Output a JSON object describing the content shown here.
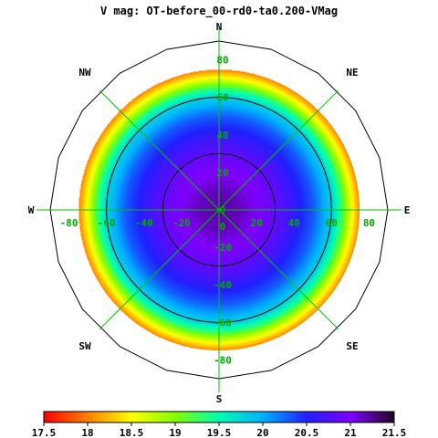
{
  "chart_data": {
    "type": "heatmap",
    "projection": "polar-sky",
    "title": "V mag: OT-before_00-rd0-ta0.200-VMag",
    "compass": {
      "n": "N",
      "ne": "NE",
      "e": "E",
      "se": "SE",
      "s": "S",
      "sw": "SW",
      "w": "W",
      "nw": "NW"
    },
    "radial_ticks": [
      {
        "key": "e20",
        "label": "20",
        "dir": "E",
        "r": 20
      },
      {
        "key": "e40",
        "label": "40",
        "dir": "E",
        "r": 40
      },
      {
        "key": "e60",
        "label": "60",
        "dir": "E",
        "r": 60
      },
      {
        "key": "e80",
        "label": "80",
        "dir": "E",
        "r": 80
      },
      {
        "key": "w20",
        "label": "-20",
        "dir": "W",
        "r": 20
      },
      {
        "key": "w40",
        "label": "-40",
        "dir": "W",
        "r": 40
      },
      {
        "key": "w60",
        "label": "-60",
        "dir": "W",
        "r": 60
      },
      {
        "key": "w80",
        "label": "-80",
        "dir": "W",
        "r": 80
      },
      {
        "key": "n20",
        "label": "20",
        "dir": "N",
        "r": 20
      },
      {
        "key": "n40",
        "label": "40",
        "dir": "N",
        "r": 40
      },
      {
        "key": "n60",
        "label": "60",
        "dir": "N",
        "r": 60
      },
      {
        "key": "n80",
        "label": "80",
        "dir": "N",
        "r": 80
      },
      {
        "key": "s20",
        "label": "-20",
        "dir": "S",
        "r": 20
      },
      {
        "key": "s40",
        "label": "-40",
        "dir": "S",
        "r": 40
      },
      {
        "key": "s60",
        "label": "-60",
        "dir": "S",
        "r": 60
      },
      {
        "key": "s80",
        "label": "-80",
        "dir": "S",
        "r": 80
      },
      {
        "key": "zero_h",
        "label": "0",
        "dir": "E",
        "r": 0
      },
      {
        "key": "zero_v",
        "label": "0",
        "dir": "S",
        "r": 0
      }
    ],
    "radial_range": [
      0,
      90
    ],
    "data_extent_radius": 75,
    "contours": [
      30,
      60,
      90
    ],
    "value_profile": {
      "r": [
        0,
        10,
        20,
        30,
        40,
        50,
        60,
        65,
        70,
        75
      ],
      "v": [
        21.2,
        21.15,
        21.0,
        20.85,
        20.6,
        20.3,
        19.8,
        19.3,
        18.6,
        18.0
      ]
    },
    "colorbar": {
      "range": [
        17.5,
        21.5
      ],
      "ticks": [
        "17.5",
        "18",
        "18.5",
        "19",
        "19.5",
        "20",
        "20.5",
        "21",
        "21.5"
      ],
      "colormap": [
        [
          17.5,
          "#ff0000"
        ],
        [
          18.0,
          "#ff8000"
        ],
        [
          18.5,
          "#ffff00"
        ],
        [
          19.0,
          "#80ff00"
        ],
        [
          19.5,
          "#00ffb0"
        ],
        [
          20.0,
          "#00b0ff"
        ],
        [
          20.5,
          "#2020ff"
        ],
        [
          21.0,
          "#8000ff"
        ],
        [
          21.5,
          "#200020"
        ]
      ]
    },
    "colors": {
      "grid": "#00c000",
      "label": "#00aa00",
      "ring": "#000000"
    }
  }
}
